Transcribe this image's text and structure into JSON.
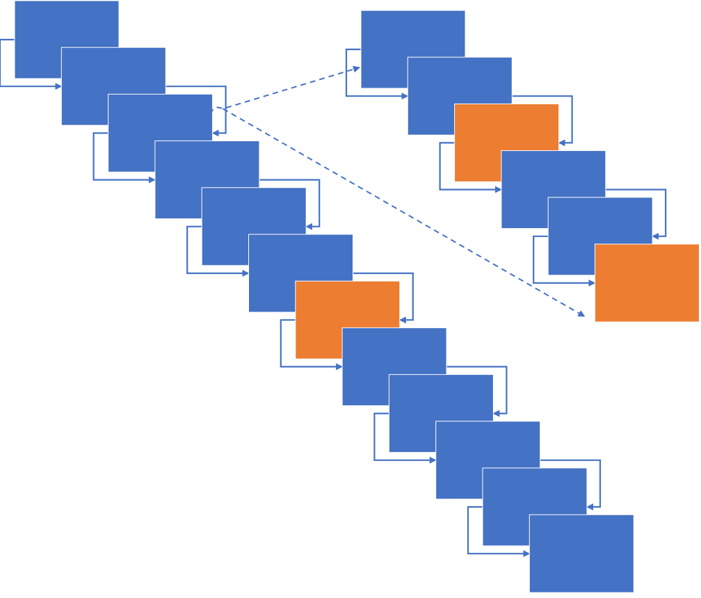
{
  "colors": {
    "box_blue": "#4472C4",
    "box_orange": "#ED7D31",
    "box_border": "#FFFFFF",
    "connector": "#4472C4",
    "background": "#FFFFFF"
  },
  "main_chain": {
    "box_kinds": [
      "blue",
      "blue",
      "blue",
      "blue",
      "blue",
      "blue",
      "orange",
      "blue",
      "blue",
      "blue",
      "blue",
      "blue"
    ]
  },
  "detail_chain": {
    "box_kinds": [
      "blue",
      "blue",
      "orange",
      "blue",
      "blue",
      "orange"
    ]
  },
  "zoom_callout": {
    "line_style": "dashed",
    "source_box": 2,
    "target": "detail-chain"
  }
}
